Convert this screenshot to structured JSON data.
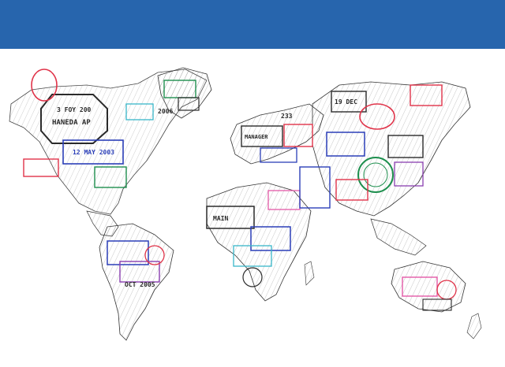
{
  "colors": {
    "header_bar": "#2765ad",
    "background": "#ffffff",
    "stamp_red": "#e0344a",
    "stamp_blue": "#2b3fb8",
    "stamp_green": "#1e8f4e",
    "stamp_teal": "#38b7c9",
    "stamp_black": "#2a2a2a",
    "stamp_purple": "#8a3fb0",
    "stamp_pink": "#e35aa8"
  },
  "stamps": {
    "na_1": "3 FOY 200",
    "na_2": "HANEDA AP",
    "na_3": "12 MAY 2003",
    "na_4": "2006",
    "sa_1": "OCT 2005",
    "eu_1": "MANAGER",
    "eu_2": "233",
    "as_1": "19 DEC",
    "af_1": "MAIN"
  }
}
